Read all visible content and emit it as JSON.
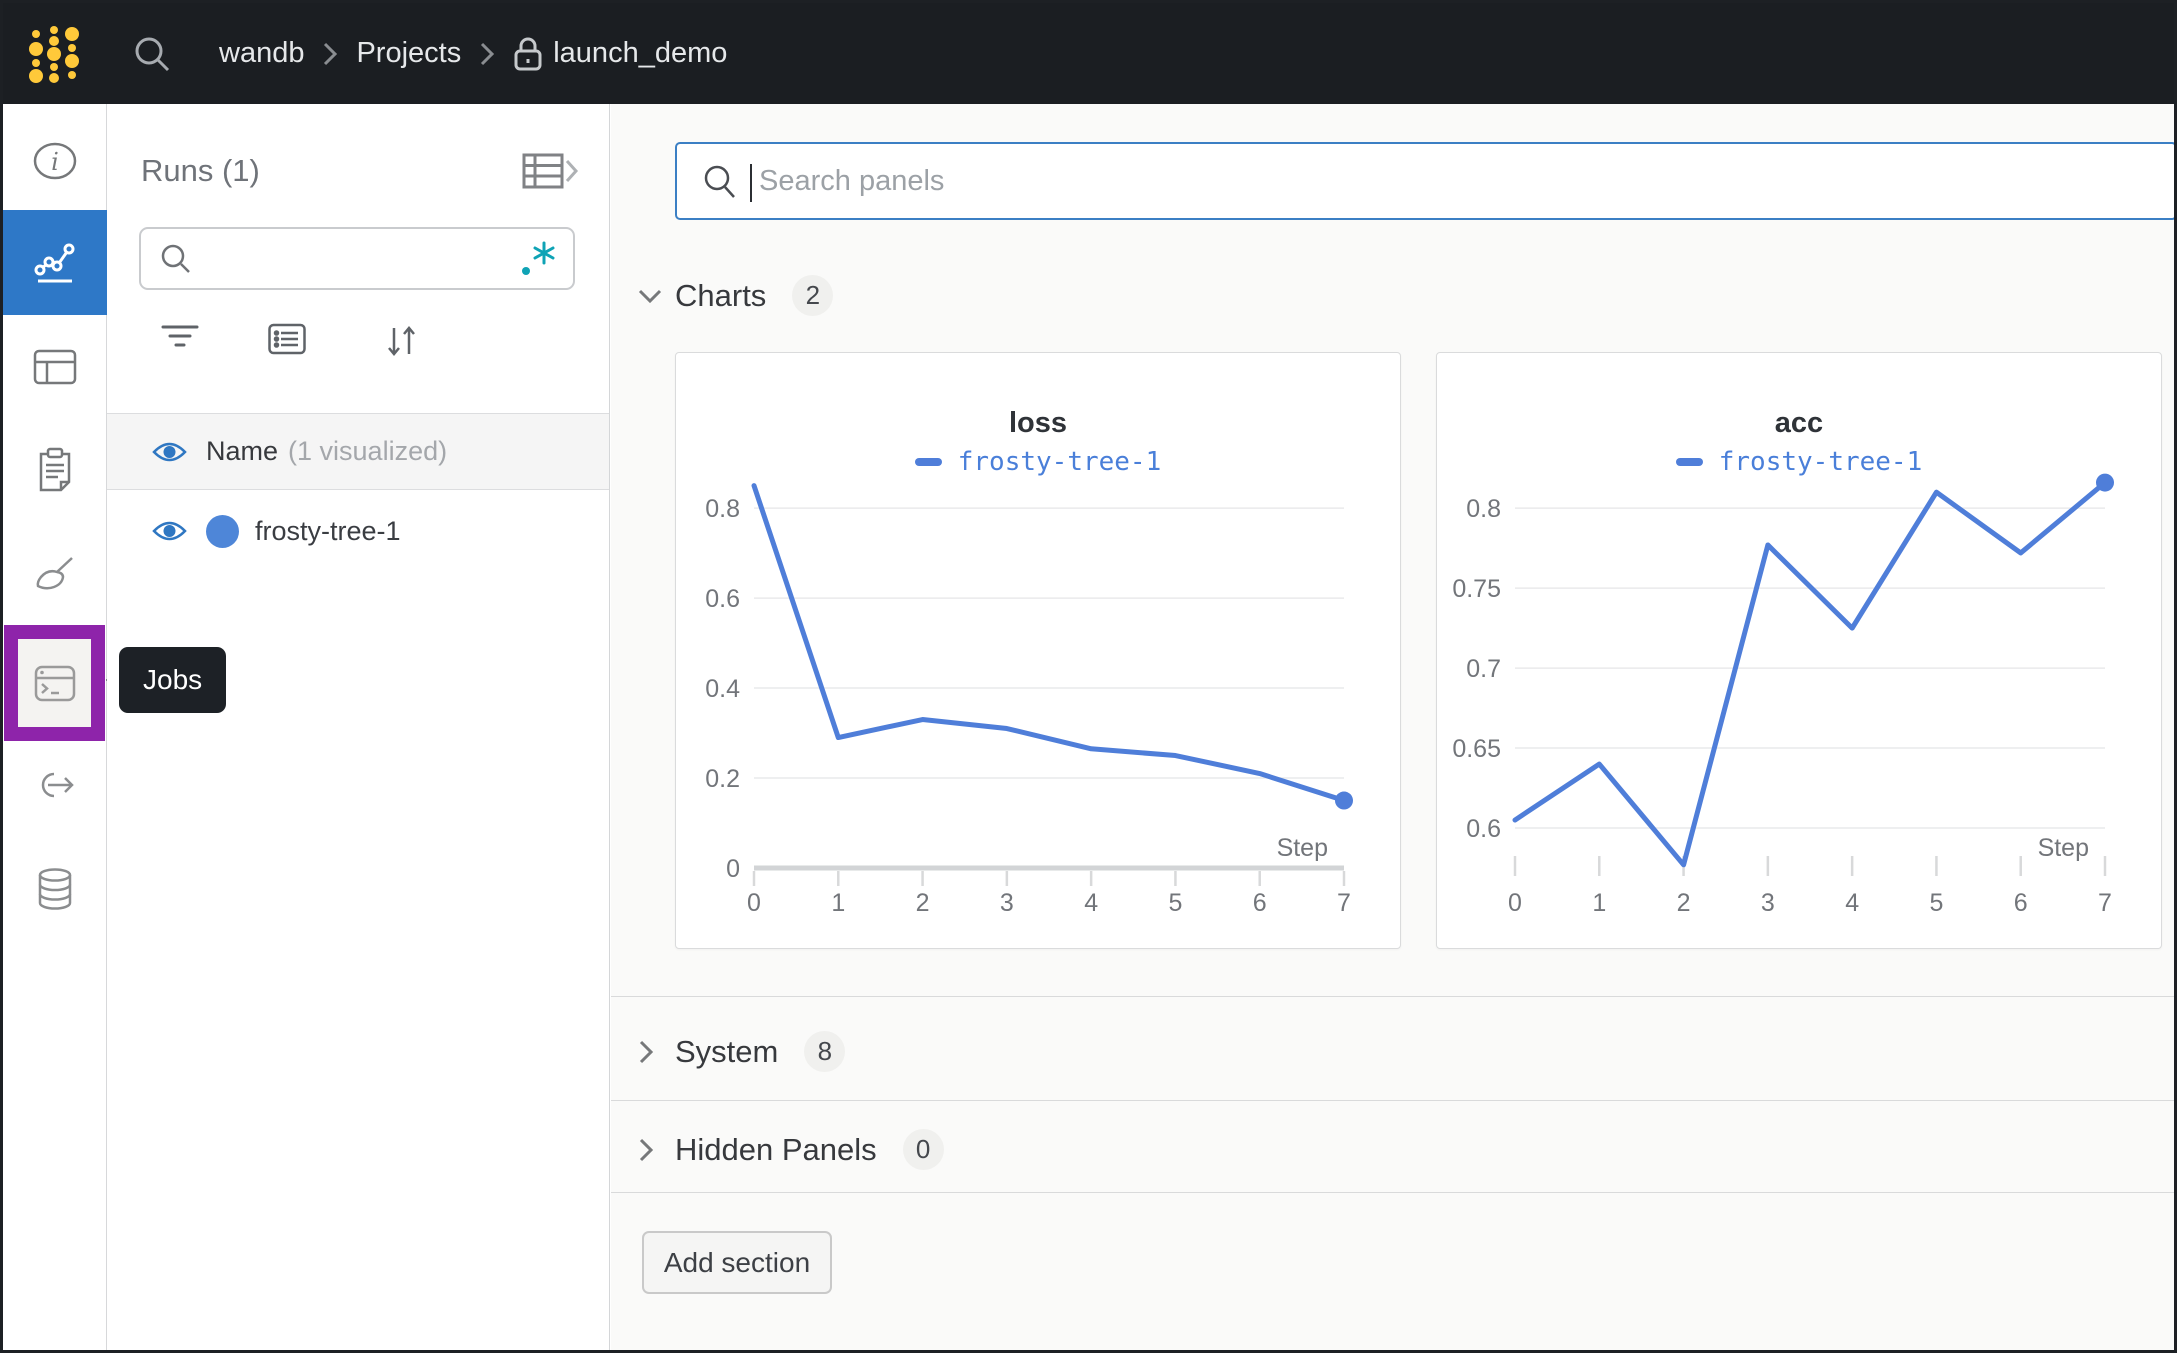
{
  "topbar": {
    "breadcrumb": {
      "team": "wandb",
      "section": "Projects",
      "project": "launch_demo"
    }
  },
  "left_rail": {
    "tooltip": "Jobs"
  },
  "runs_panel": {
    "title": "Runs (1)",
    "search": {
      "value": "",
      "placeholder": ""
    },
    "columns_header": {
      "name": "Name",
      "annotation": "(1 visualized)"
    },
    "runs": [
      {
        "name": "frosty-tree-1",
        "color": "#4e86d8",
        "visible": true
      }
    ]
  },
  "main": {
    "panel_search": {
      "placeholder": "Search panels",
      "value": ""
    },
    "sections": [
      {
        "label": "Charts",
        "count": "2",
        "expanded": true
      },
      {
        "label": "System",
        "count": "8",
        "expanded": false
      },
      {
        "label": "Hidden Panels",
        "count": "0",
        "expanded": false
      }
    ],
    "add_section_label": "Add section"
  },
  "chart_data": [
    {
      "type": "line",
      "title": "loss",
      "xlabel": "Step",
      "x": [
        0,
        1,
        2,
        3,
        4,
        5,
        6,
        7
      ],
      "series": [
        {
          "name": "frosty-tree-1",
          "color": "#4f7ed9",
          "values": [
            0.85,
            0.29,
            0.33,
            0.31,
            0.265,
            0.25,
            0.21,
            0.15
          ]
        }
      ],
      "yticks": [
        0,
        0.2,
        0.4,
        0.6,
        0.8
      ],
      "ylim": [
        0,
        0.878
      ],
      "xlim": [
        0,
        7
      ],
      "axis_line": true,
      "grid": true,
      "legend_position": "top",
      "end_marker": true
    },
    {
      "type": "line",
      "title": "acc",
      "xlabel": "Step",
      "x": [
        0,
        1,
        2,
        3,
        4,
        5,
        6,
        7
      ],
      "series": [
        {
          "name": "frosty-tree-1",
          "color": "#4f7ed9",
          "values": [
            0.605,
            0.64,
            0.577,
            0.777,
            0.725,
            0.81,
            0.772,
            0.816
          ]
        }
      ],
      "yticks": [
        0.6,
        0.65,
        0.7,
        0.75,
        0.8
      ],
      "ylim": [
        0.575,
        0.822
      ],
      "xlim": [
        0,
        7
      ],
      "axis_line": false,
      "grid": true,
      "legend_position": "top",
      "end_marker": true
    }
  ],
  "colors": {
    "accent_blue": "#2e78c7",
    "highlight_purple": "#8e24aa",
    "chart_line": "#4f7ed9",
    "topbar_bg": "#1b1e22",
    "logo_yellow": "#ffc93a",
    "regex_teal": "#0fa3b5"
  }
}
